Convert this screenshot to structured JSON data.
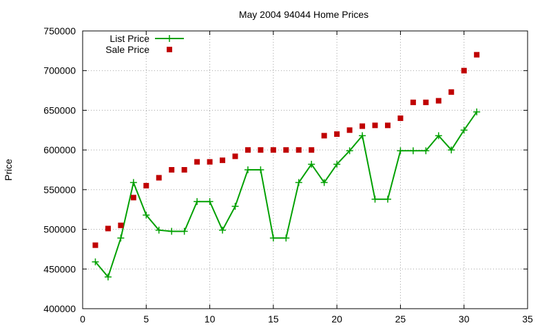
{
  "chart_data": {
    "type": "line",
    "title": "May 2004 94044 Home Prices",
    "xlabel": "",
    "ylabel": "Price",
    "xlim": [
      0,
      35
    ],
    "ylim": [
      400000,
      750000
    ],
    "x_ticks": [
      "0",
      "5",
      "10",
      "15",
      "20",
      "25",
      "30",
      "35"
    ],
    "y_ticks": [
      "400000",
      "450000",
      "500000",
      "550000",
      "600000",
      "650000",
      "700000",
      "750000"
    ],
    "grid": true,
    "legend_position": "top-left",
    "series": [
      {
        "name": "List Price",
        "style": "linespoints",
        "marker": "plus",
        "color": "#00a000",
        "x": [
          1,
          2,
          3,
          4,
          5,
          6,
          7,
          8,
          9,
          10,
          11,
          12,
          13,
          14,
          15,
          16,
          17,
          18,
          19,
          20,
          21,
          22,
          23,
          24,
          25,
          26,
          27,
          28,
          29,
          30,
          31
        ],
        "values": [
          459000,
          440000,
          489000,
          559000,
          518000,
          499000,
          497500,
          497500,
          535000,
          535000,
          499000,
          529000,
          575000,
          575000,
          489000,
          489000,
          559000,
          582000,
          559000,
          582000,
          599000,
          618000,
          538000,
          538000,
          599000,
          599000,
          599000,
          618000,
          600000,
          625000,
          648000
        ]
      },
      {
        "name": "Sale Price",
        "style": "points",
        "marker": "square",
        "color": "#c00000",
        "x": [
          1,
          2,
          3,
          4,
          5,
          6,
          7,
          8,
          9,
          10,
          11,
          12,
          13,
          14,
          15,
          16,
          17,
          18,
          19,
          20,
          21,
          22,
          23,
          24,
          25,
          26,
          27,
          28,
          29,
          30,
          31
        ],
        "values": [
          480000,
          501000,
          505000,
          540000,
          555000,
          565000,
          575000,
          575000,
          585000,
          585000,
          587000,
          592000,
          600000,
          600000,
          600000,
          600000,
          600000,
          600000,
          618000,
          620000,
          625000,
          630000,
          631000,
          631000,
          640000,
          660000,
          660000,
          662000,
          673000,
          700000,
          720000
        ]
      }
    ]
  }
}
